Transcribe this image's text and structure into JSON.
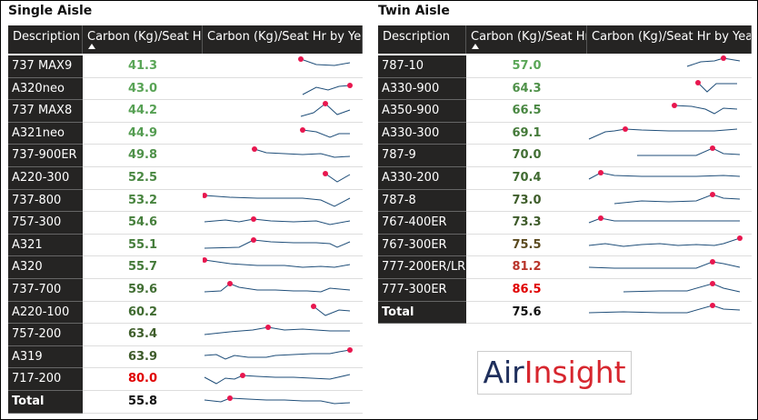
{
  "tables": [
    {
      "title": "Single Aisle",
      "columns": [
        "Description",
        "Carbon (Kg)/Seat Hr",
        "Carbon (Kg)/Seat Hr by Year"
      ],
      "rows": [
        {
          "description": "737 MAX9",
          "value": "41.3",
          "color": "#5aa657"
        },
        {
          "description": "A320neo",
          "value": "43.0",
          "color": "#58a355"
        },
        {
          "description": "737 MAX8",
          "value": "44.2",
          "color": "#56a053"
        },
        {
          "description": "A321neo",
          "value": "44.9",
          "color": "#549c51"
        },
        {
          "description": "737-900ER",
          "value": "49.8",
          "color": "#4f9149"
        },
        {
          "description": "A220-300",
          "value": "52.5",
          "color": "#4a8843"
        },
        {
          "description": "737-800",
          "value": "53.2",
          "color": "#48843f"
        },
        {
          "description": "757-300",
          "value": "54.6",
          "color": "#467f3c"
        },
        {
          "description": "A321",
          "value": "55.1",
          "color": "#457d3b"
        },
        {
          "description": "A320",
          "value": "55.7",
          "color": "#447a39"
        },
        {
          "description": "737-700",
          "value": "59.6",
          "color": "#416e33"
        },
        {
          "description": "A220-100",
          "value": "60.2",
          "color": "#406b31"
        },
        {
          "description": "757-200",
          "value": "63.4",
          "color": "#3f5e2b"
        },
        {
          "description": "A319",
          "value": "63.9",
          "color": "#3e5b2a"
        },
        {
          "description": "717-200",
          "value": "80.0",
          "color": "#e00000"
        }
      ],
      "total": {
        "description": "Total",
        "value": "55.8"
      }
    },
    {
      "title": "Twin Aisle",
      "columns": [
        "Description",
        "Carbon (Kg)/Seat Hr",
        "Carbon (Kg)/Seat Hr by Year"
      ],
      "rows": [
        {
          "description": "787-10",
          "value": "57.0",
          "color": "#5aa657"
        },
        {
          "description": "A330-900",
          "value": "64.3",
          "color": "#4f9149"
        },
        {
          "description": "A350-900",
          "value": "66.5",
          "color": "#4a8843"
        },
        {
          "description": "A330-300",
          "value": "69.1",
          "color": "#447a39"
        },
        {
          "description": "787-9",
          "value": "70.0",
          "color": "#416e33"
        },
        {
          "description": "A330-200",
          "value": "70.4",
          "color": "#406b31"
        },
        {
          "description": "787-8",
          "value": "73.0",
          "color": "#3f5e2b"
        },
        {
          "description": "767-400ER",
          "value": "73.3",
          "color": "#3e5b2a"
        },
        {
          "description": "767-300ER",
          "value": "75.5",
          "color": "#5b4a1f"
        },
        {
          "description": "777-200ER/LR",
          "value": "81.2",
          "color": "#b8332a"
        },
        {
          "description": "777-300ER",
          "value": "86.5",
          "color": "#e00000"
        }
      ],
      "total": {
        "description": "Total",
        "value": "75.6"
      }
    }
  ],
  "logo": {
    "part1": "Air",
    "part2": "Insight"
  }
}
